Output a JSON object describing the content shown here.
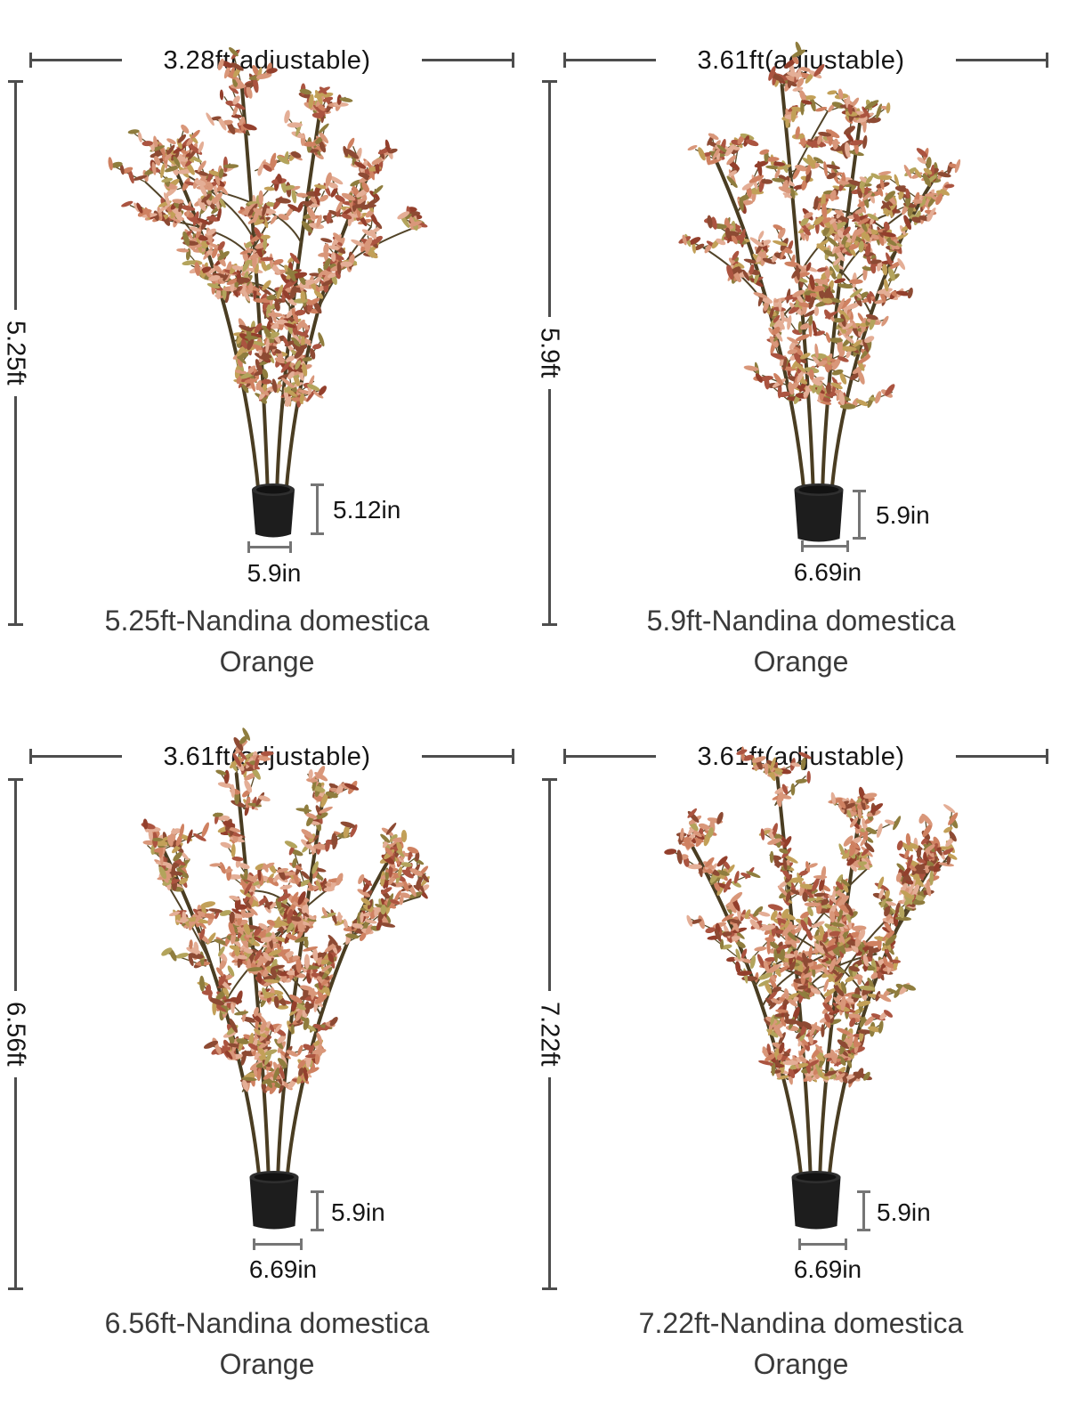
{
  "colors": {
    "dimension_line": "#4d4d4d",
    "pot_dimension_line": "#757575",
    "label_text": "#151515",
    "caption_text": "#3a3a3a",
    "pot": "#1d1d1d",
    "stem": "#4a3d22",
    "leaf_palette": [
      "#d9977a",
      "#e4ae96",
      "#cf8161",
      "#ab5440",
      "#8d4a33",
      "#c2a058",
      "#8f7d3e",
      "#b3a45c",
      "#933f2c"
    ]
  },
  "panels": [
    {
      "width_label": "3.28ft(adjustable)",
      "height_label": "5.25ft",
      "pot_height_label": "5.12in",
      "pot_width_label": "5.9in",
      "caption_line1": "5.25ft-Nandina domestica",
      "caption_line2": "Orange"
    },
    {
      "width_label": "3.61ft(adjustable)",
      "height_label": "5.9ft",
      "pot_height_label": "5.9in",
      "pot_width_label": "6.69in",
      "caption_line1": "5.9ft-Nandina domestica",
      "caption_line2": "Orange"
    },
    {
      "width_label": "3.61ft(adjustable)",
      "height_label": "6.56ft",
      "pot_height_label": "5.9in",
      "pot_width_label": "6.69in",
      "caption_line1": "6.56ft-Nandina domestica",
      "caption_line2": "Orange"
    },
    {
      "width_label": "3.61ft(adjustable)",
      "height_label": "7.22ft",
      "pot_height_label": "5.9in",
      "pot_width_label": "6.69in",
      "caption_line1": "7.22ft-Nandina domestica",
      "caption_line2": "Orange"
    }
  ]
}
